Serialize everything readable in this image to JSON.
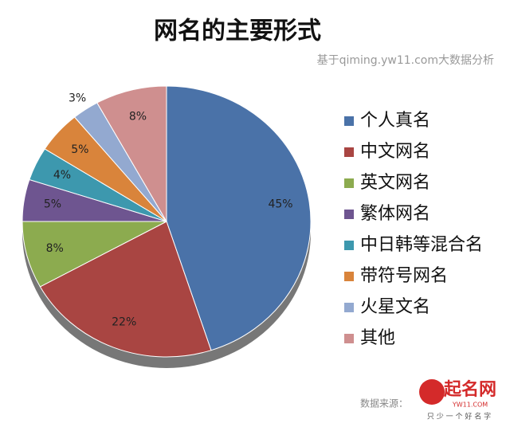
{
  "chart_data": {
    "type": "pie",
    "title": "网名的主要形式",
    "subtitle": "基于qiming.yw11.com大数据分析",
    "categories": [
      "个人真名",
      "中文网名",
      "英文网名",
      "繁体网名",
      "中日韩等混合名",
      "带符号网名",
      "火星文名",
      "其他"
    ],
    "values": [
      45,
      22,
      8,
      5,
      4,
      5,
      3,
      8
    ],
    "value_labels": [
      "45%",
      "22%",
      "8%",
      "5%",
      "4%",
      "5%",
      "3%",
      "8%"
    ],
    "colors": [
      "#4a72a8",
      "#a94542",
      "#8cab4f",
      "#6e5590",
      "#3d98ae",
      "#d9843b",
      "#93a9d0",
      "#cf8f8f"
    ],
    "legend": "right"
  },
  "footer": {
    "source_label": "数据来源：",
    "logo_name": "起名网",
    "logo_site": "YW11.COM",
    "logo_slogan": "只 少 一 个 好 名 字"
  }
}
